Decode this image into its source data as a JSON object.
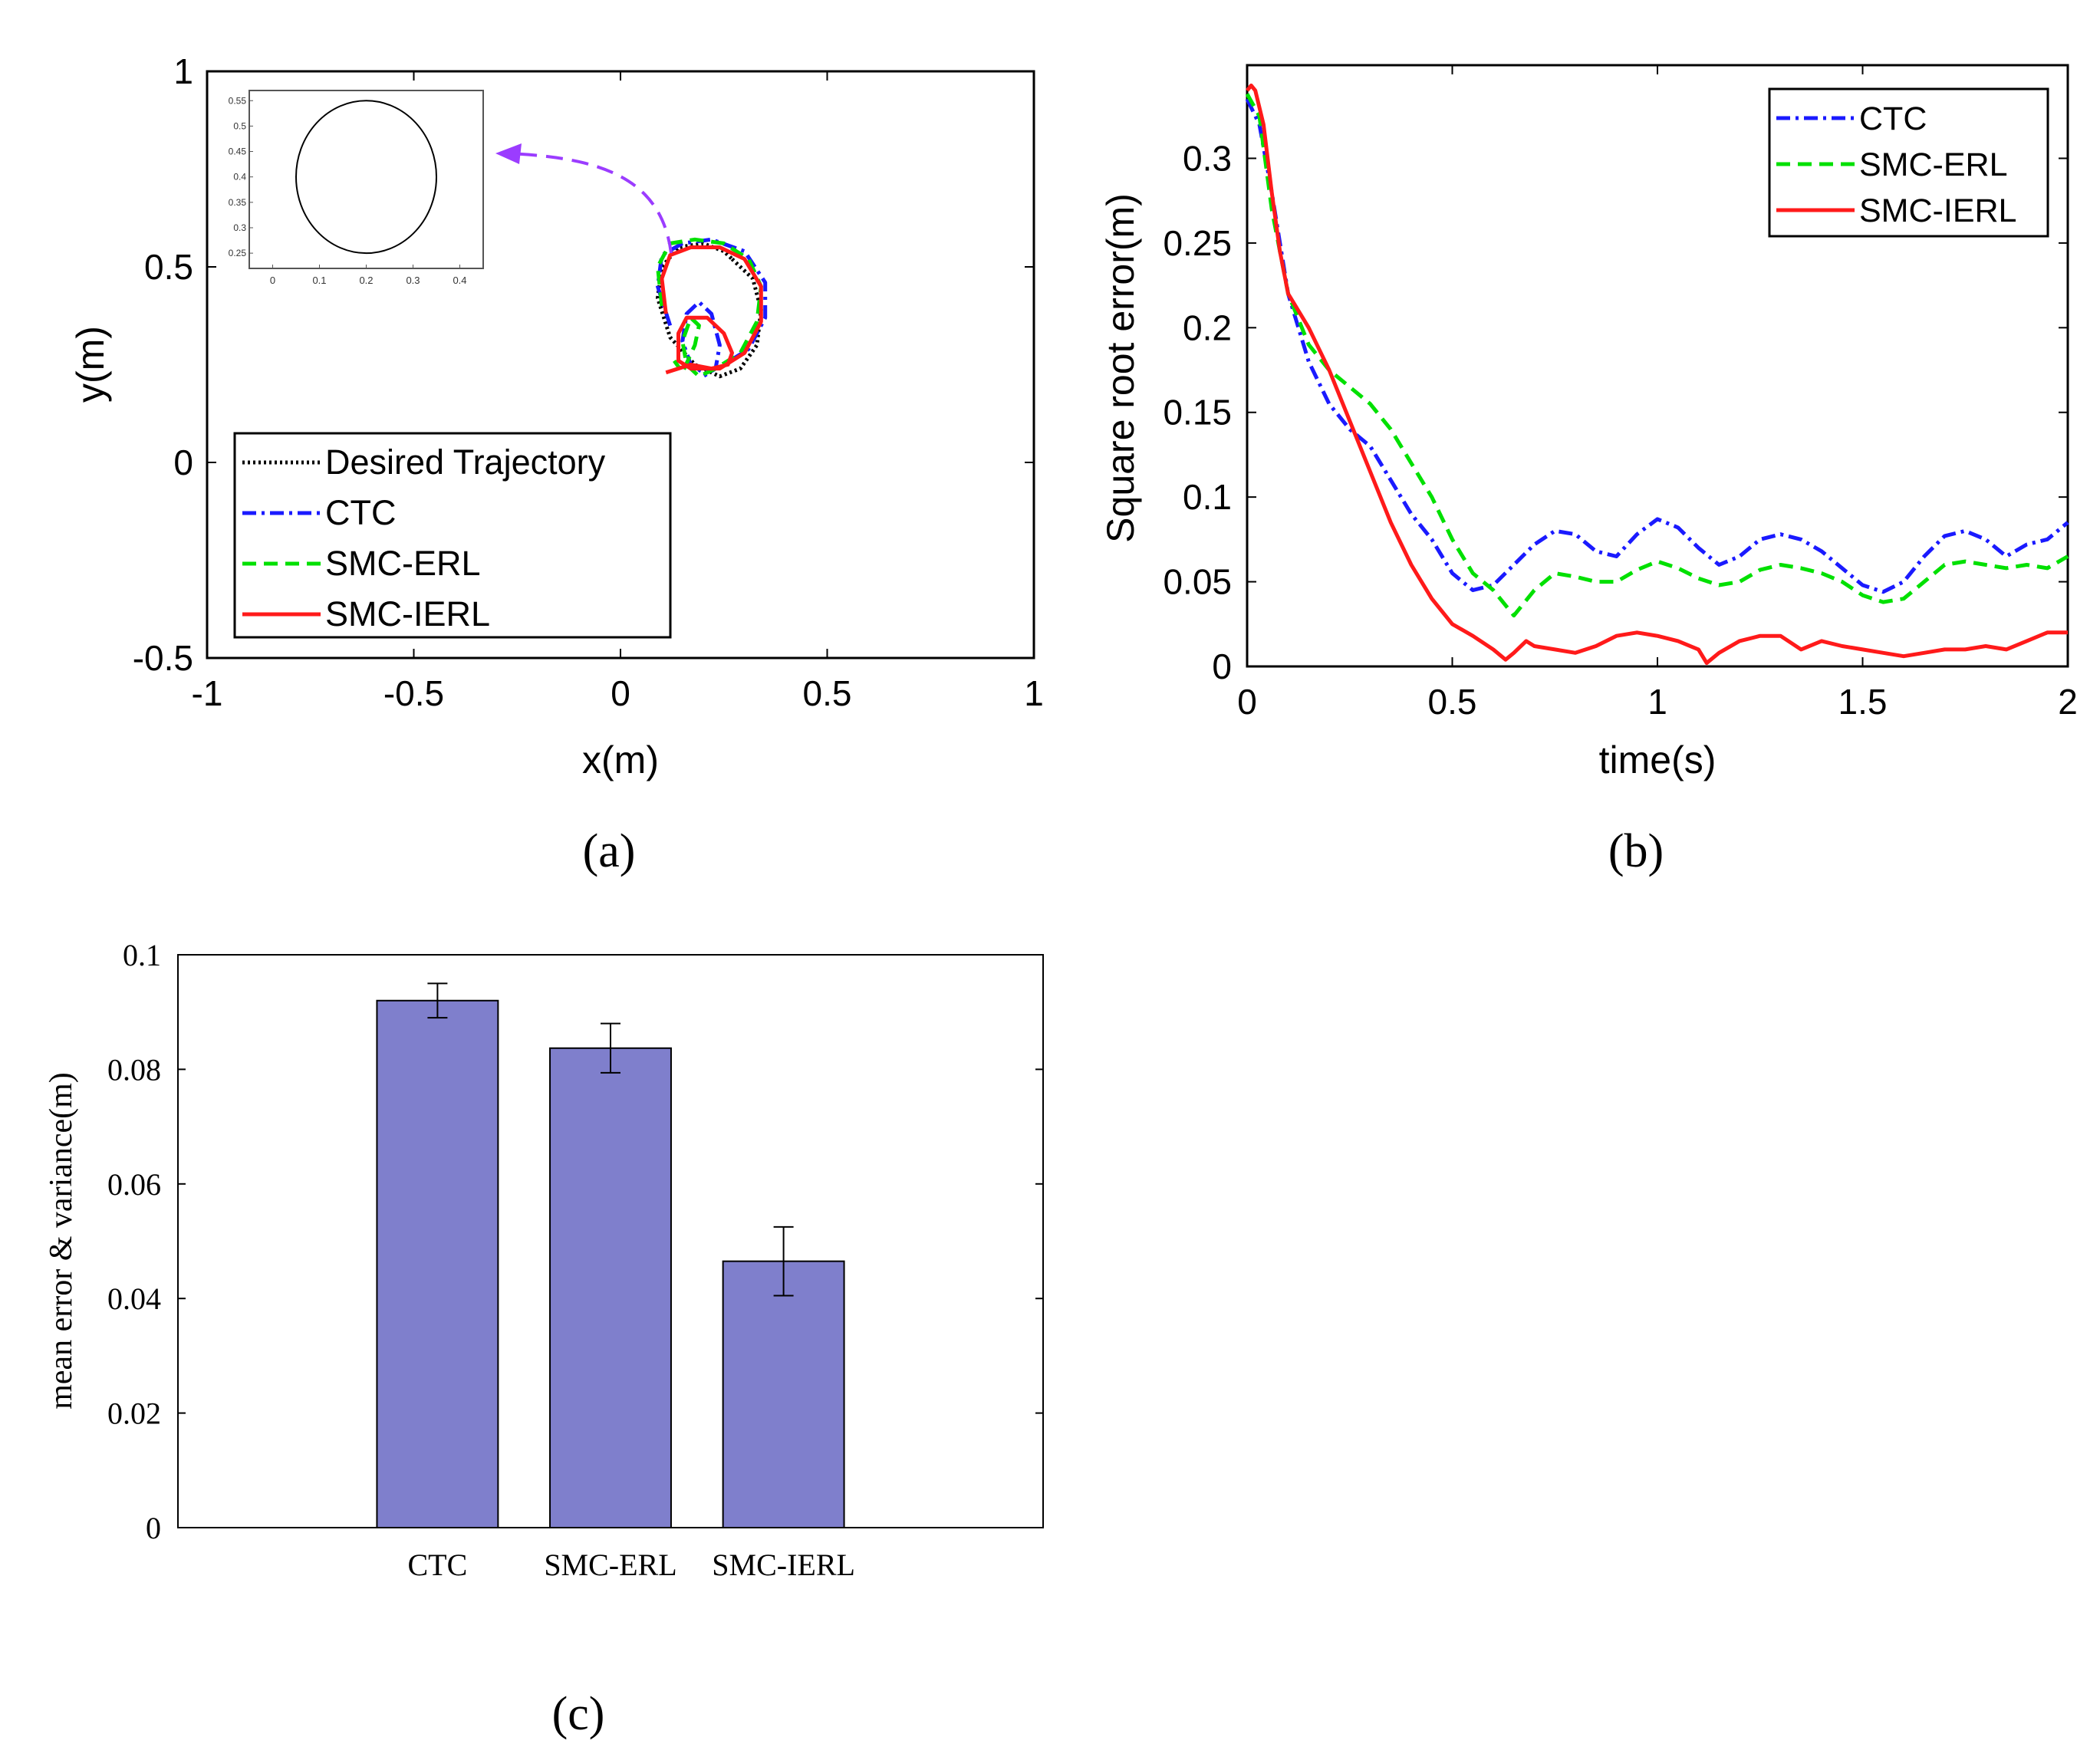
{
  "chart_data": [
    {
      "id": "a",
      "type": "line",
      "caption": "(a)",
      "xlabel": "x(m)",
      "ylabel": "y(m)",
      "xlim": [
        -1,
        1
      ],
      "ylim": [
        -0.5,
        1
      ],
      "xticks": [
        -1,
        -0.5,
        0,
        0.5,
        1
      ],
      "xtick_labels": [
        "-1",
        "-0.5",
        "0",
        "0.5",
        "1"
      ],
      "yticks": [
        -0.5,
        0,
        0.5,
        1
      ],
      "ytick_labels": [
        "-0.5",
        "0",
        "0.5",
        "1"
      ],
      "legend_position": "bottom-left",
      "series": [
        {
          "name": "Desired Trajectory",
          "color": "#000000",
          "dash": "dotted",
          "x": [
            0.27,
            0.32,
            0.34,
            0.33,
            0.29,
            0.24,
            0.18,
            0.12,
            0.09,
            0.1,
            0.14,
            0.2,
            0.25,
            0.27
          ],
          "y": [
            0.52,
            0.47,
            0.39,
            0.3,
            0.24,
            0.22,
            0.25,
            0.32,
            0.42,
            0.5,
            0.55,
            0.56,
            0.54,
            0.52
          ]
        },
        {
          "name": "CTC",
          "color": "#1a1aff",
          "dash": "dashdot",
          "x": [
            0.12,
            0.09,
            0.1,
            0.15,
            0.22,
            0.3,
            0.35,
            0.35,
            0.31,
            0.25,
            0.2,
            0.17,
            0.15,
            0.16,
            0.19,
            0.22,
            0.24,
            0.23,
            0.2
          ],
          "y": [
            0.35,
            0.45,
            0.53,
            0.56,
            0.57,
            0.54,
            0.46,
            0.37,
            0.29,
            0.25,
            0.23,
            0.25,
            0.31,
            0.38,
            0.41,
            0.38,
            0.3,
            0.24,
            0.22
          ]
        },
        {
          "name": "SMC-ERL",
          "color": "#00e000",
          "dash": "dashed",
          "x": [
            0.1,
            0.09,
            0.12,
            0.18,
            0.25,
            0.31,
            0.34,
            0.33,
            0.29,
            0.23,
            0.19,
            0.16,
            0.15,
            0.17,
            0.19,
            0.18,
            0.15,
            0.13
          ],
          "y": [
            0.4,
            0.5,
            0.56,
            0.57,
            0.56,
            0.52,
            0.45,
            0.36,
            0.28,
            0.24,
            0.22,
            0.25,
            0.31,
            0.37,
            0.35,
            0.3,
            0.23,
            0.26
          ]
        },
        {
          "name": "SMC-IERL",
          "color": "#ff1a1a",
          "dash": "solid",
          "x": [
            0.11,
            0.1,
            0.12,
            0.17,
            0.24,
            0.3,
            0.34,
            0.34,
            0.3,
            0.24,
            0.17,
            0.14,
            0.14,
            0.16,
            0.21,
            0.25,
            0.27,
            0.26,
            0.22,
            0.17,
            0.11
          ],
          "y": [
            0.38,
            0.47,
            0.53,
            0.55,
            0.55,
            0.52,
            0.45,
            0.36,
            0.28,
            0.24,
            0.24,
            0.26,
            0.33,
            0.37,
            0.37,
            0.33,
            0.28,
            0.25,
            0.24,
            0.25,
            0.23
          ]
        }
      ],
      "inset": {
        "xlim": [
          -0.05,
          0.45
        ],
        "ylim": [
          0.22,
          0.57
        ],
        "xticks": [
          0,
          0.1,
          0.2,
          0.3,
          0.4
        ],
        "xtick_labels": [
          "0",
          "0.1",
          "0.2",
          "0.3",
          "0.4"
        ],
        "yticks": [
          0.25,
          0.3,
          0.35,
          0.4,
          0.45,
          0.5,
          0.55
        ],
        "ytick_labels": [
          "0.25",
          "0.3",
          "0.35",
          "0.4",
          "0.45",
          "0.5",
          "0.55"
        ],
        "circle": {
          "cx": 0.2,
          "cy": 0.4,
          "r": 0.15
        },
        "arrow_color": "#9b3cff"
      }
    },
    {
      "id": "b",
      "type": "line",
      "caption": "(b)",
      "xlabel": "time(s)",
      "ylabel": "Square root error(m)",
      "xlim": [
        0,
        2
      ],
      "ylim": [
        0,
        0.355
      ],
      "xticks": [
        0,
        0.5,
        1,
        1.5,
        2
      ],
      "xtick_labels": [
        "0",
        "0.5",
        "1",
        "1.5",
        "2"
      ],
      "yticks": [
        0,
        0.05,
        0.1,
        0.15,
        0.2,
        0.25,
        0.3
      ],
      "ytick_labels": [
        "0",
        "0.05",
        "0.1",
        "0.15",
        "0.2",
        "0.25",
        "0.3"
      ],
      "legend_position": "top-right",
      "series": [
        {
          "name": "CTC",
          "color": "#1a1aff",
          "dash": "dashdot",
          "x": [
            0,
            0.03,
            0.06,
            0.1,
            0.15,
            0.2,
            0.25,
            0.3,
            0.35,
            0.4,
            0.45,
            0.5,
            0.55,
            0.6,
            0.65,
            0.7,
            0.75,
            0.8,
            0.85,
            0.9,
            0.95,
            1,
            1.05,
            1.1,
            1.15,
            1.2,
            1.25,
            1.3,
            1.35,
            1.4,
            1.45,
            1.5,
            1.55,
            1.6,
            1.65,
            1.7,
            1.75,
            1.8,
            1.85,
            1.9,
            1.95,
            2
          ],
          "y": [
            0.335,
            0.32,
            0.28,
            0.22,
            0.18,
            0.155,
            0.14,
            0.13,
            0.11,
            0.09,
            0.075,
            0.055,
            0.045,
            0.048,
            0.06,
            0.072,
            0.08,
            0.078,
            0.068,
            0.065,
            0.078,
            0.087,
            0.082,
            0.07,
            0.06,
            0.065,
            0.075,
            0.078,
            0.075,
            0.068,
            0.058,
            0.048,
            0.044,
            0.05,
            0.065,
            0.077,
            0.08,
            0.075,
            0.065,
            0.072,
            0.075,
            0.085
          ]
        },
        {
          "name": "SMC-ERL",
          "color": "#00e000",
          "dash": "dashed",
          "x": [
            0,
            0.03,
            0.06,
            0.1,
            0.15,
            0.2,
            0.25,
            0.3,
            0.35,
            0.4,
            0.45,
            0.5,
            0.55,
            0.6,
            0.65,
            0.7,
            0.75,
            0.8,
            0.85,
            0.9,
            0.95,
            1,
            1.05,
            1.1,
            1.15,
            1.2,
            1.25,
            1.3,
            1.35,
            1.4,
            1.45,
            1.5,
            1.55,
            1.6,
            1.65,
            1.7,
            1.75,
            1.8,
            1.85,
            1.9,
            1.95,
            2
          ],
          "y": [
            0.338,
            0.325,
            0.27,
            0.22,
            0.19,
            0.175,
            0.165,
            0.155,
            0.14,
            0.12,
            0.1,
            0.075,
            0.055,
            0.045,
            0.03,
            0.045,
            0.055,
            0.053,
            0.05,
            0.05,
            0.057,
            0.062,
            0.058,
            0.052,
            0.048,
            0.05,
            0.057,
            0.06,
            0.058,
            0.055,
            0.05,
            0.042,
            0.038,
            0.04,
            0.05,
            0.06,
            0.062,
            0.06,
            0.058,
            0.06,
            0.058,
            0.065
          ]
        },
        {
          "name": "SMC-IERL",
          "color": "#ff1a1a",
          "dash": "solid",
          "x": [
            0,
            0.01,
            0.02,
            0.04,
            0.06,
            0.08,
            0.1,
            0.15,
            0.2,
            0.25,
            0.3,
            0.35,
            0.4,
            0.45,
            0.5,
            0.55,
            0.6,
            0.63,
            0.65,
            0.68,
            0.7,
            0.75,
            0.8,
            0.85,
            0.9,
            0.95,
            1,
            1.05,
            1.1,
            1.12,
            1.15,
            1.2,
            1.25,
            1.3,
            1.35,
            1.4,
            1.45,
            1.5,
            1.55,
            1.6,
            1.65,
            1.7,
            1.75,
            1.8,
            1.85,
            1.9,
            1.95,
            2
          ],
          "y": [
            0.34,
            0.343,
            0.34,
            0.32,
            0.28,
            0.245,
            0.22,
            0.2,
            0.175,
            0.145,
            0.115,
            0.085,
            0.06,
            0.04,
            0.025,
            0.018,
            0.01,
            0.004,
            0.008,
            0.015,
            0.012,
            0.01,
            0.008,
            0.012,
            0.018,
            0.02,
            0.018,
            0.015,
            0.01,
            0.002,
            0.008,
            0.015,
            0.018,
            0.018,
            0.01,
            0.015,
            0.012,
            0.01,
            0.008,
            0.006,
            0.008,
            0.01,
            0.01,
            0.012,
            0.01,
            0.015,
            0.02,
            0.02
          ]
        }
      ]
    },
    {
      "id": "c",
      "type": "bar",
      "caption": "(c)",
      "xlabel": "",
      "ylabel": "mean error & variance(m)",
      "ylim": [
        0,
        0.1
      ],
      "yticks": [
        0,
        0.02,
        0.04,
        0.06,
        0.08,
        0.1
      ],
      "ytick_labels": [
        "0",
        "0.02",
        "0.04",
        "0.06",
        "0.08",
        "0.1"
      ],
      "categories": [
        "CTC",
        "SMC-ERL",
        "SMC-IERL"
      ],
      "values": [
        0.092,
        0.0837,
        0.0465
      ],
      "error": [
        0.003,
        0.0043,
        0.006
      ],
      "bar_color": "#7f7fcc"
    }
  ]
}
